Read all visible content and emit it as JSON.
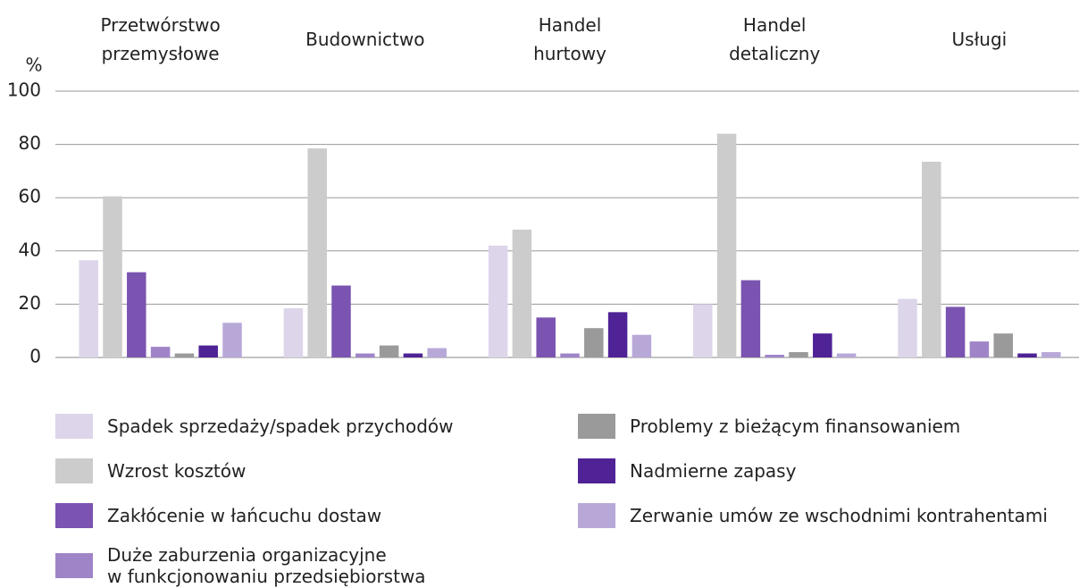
{
  "chart_data": {
    "type": "bar",
    "y_label": "%",
    "categories": [
      "Przetwórstwo\nprzemysłowe",
      "Budownictwo",
      "Handel\nhurtowy",
      "Handel\ndetaliczny",
      "Usługi"
    ],
    "series": [
      {
        "name": "Spadek sprzedaży/spadek przychodów",
        "color": "#ddd5ea",
        "values": [
          36.5,
          18.5,
          42,
          20,
          22
        ]
      },
      {
        "name": "Wzrost kosztów",
        "color": "#cccccc",
        "values": [
          60.5,
          78.5,
          48,
          84,
          73.5
        ]
      },
      {
        "name": "Zakłócenie w łańcuchu dostaw",
        "color": "#7a54b0",
        "values": [
          32,
          27,
          15,
          29,
          19
        ]
      },
      {
        "name": "Duże zaburzenia organizacyjne\nw funkcjonowaniu przedsiębiorstwa",
        "color": "#9f85c8",
        "values": [
          4,
          1.5,
          1.5,
          1,
          6
        ]
      },
      {
        "name": "Problemy z bieżącym finansowaniem",
        "color": "#9a9a9a",
        "values": [
          1.5,
          4.5,
          11,
          2,
          9
        ]
      },
      {
        "name": "Nadmierne zapasy",
        "color": "#4f2296",
        "values": [
          4.5,
          1.5,
          17,
          9,
          1.5
        ]
      },
      {
        "name": "Zerwanie umów ze wschodnimi kontrahentami",
        "color": "#b8a8d8",
        "values": [
          13,
          3.5,
          8.5,
          1.5,
          2
        ]
      }
    ],
    "ylim": [
      0,
      100
    ],
    "yticks": [
      0,
      20,
      40,
      60,
      80,
      100
    ],
    "grid": true
  }
}
